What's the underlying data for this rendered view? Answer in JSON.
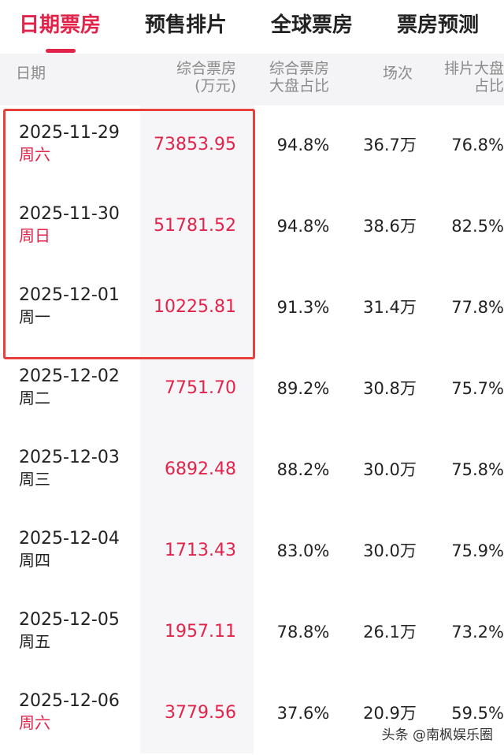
{
  "tabs": [
    {
      "label": "日期票房",
      "active": true
    },
    {
      "label": "预售排片",
      "active": false
    },
    {
      "label": "全球票房",
      "active": false
    },
    {
      "label": "票房预测",
      "active": false
    }
  ],
  "header": {
    "date": "日期",
    "boxoffice_1": "综合票房",
    "boxoffice_2": "(万元)",
    "share_1": "综合票房",
    "share_2": "大盘占比",
    "sessions": "场次",
    "screen_1": "排片大盘",
    "screen_2": "占比"
  },
  "rows": [
    {
      "date": "2025-11-29",
      "weekday": "周六",
      "weekend": true,
      "boxoffice": "73853.95",
      "share": "94.8%",
      "sessions": "36.7万",
      "screen": "76.8%"
    },
    {
      "date": "2025-11-30",
      "weekday": "周日",
      "weekend": true,
      "boxoffice": "51781.52",
      "share": "94.8%",
      "sessions": "38.6万",
      "screen": "82.5%"
    },
    {
      "date": "2025-12-01",
      "weekday": "周一",
      "weekend": false,
      "boxoffice": "10225.81",
      "share": "91.3%",
      "sessions": "31.4万",
      "screen": "77.8%"
    },
    {
      "date": "2025-12-02",
      "weekday": "周二",
      "weekend": false,
      "boxoffice": "7751.70",
      "share": "89.2%",
      "sessions": "30.8万",
      "screen": "75.7%"
    },
    {
      "date": "2025-12-03",
      "weekday": "周三",
      "weekend": false,
      "boxoffice": "6892.48",
      "share": "88.2%",
      "sessions": "30.0万",
      "screen": "75.8%"
    },
    {
      "date": "2025-12-04",
      "weekday": "周四",
      "weekend": false,
      "boxoffice": "1713.43",
      "share": "83.0%",
      "sessions": "30.0万",
      "screen": "75.9%"
    },
    {
      "date": "2025-12-05",
      "weekday": "周五",
      "weekend": false,
      "boxoffice": "1957.11",
      "share": "78.8%",
      "sessions": "26.1万",
      "screen": "73.2%"
    },
    {
      "date": "2025-12-06",
      "weekday": "周六",
      "weekend": true,
      "boxoffice": "3779.56",
      "share": "37.6%",
      "sessions": "20.9万",
      "screen": "59.5%"
    }
  ],
  "colors": {
    "accent": "#e2234a",
    "weekend": "#e2234a",
    "weekday": "#222222",
    "highlight_border": "#e8403c"
  },
  "watermark": "头条 @南枫娱乐圈"
}
